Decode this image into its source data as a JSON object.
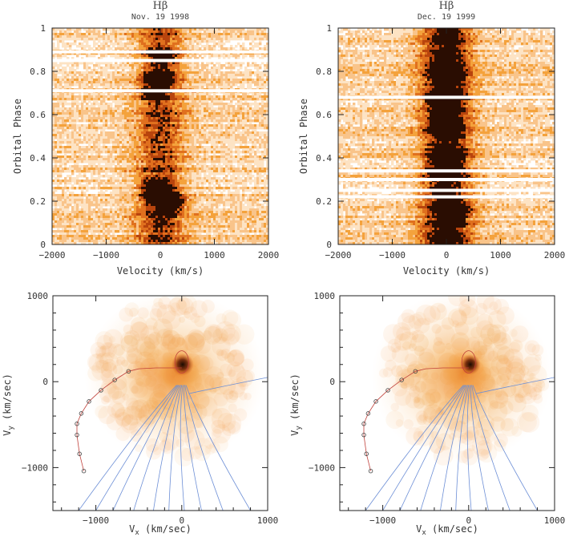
{
  "chart_data": [
    {
      "type": "heatmap",
      "title": "Hβ",
      "subtitle": "Nov. 19 1998",
      "xlabel": "Velocity (km/s)",
      "ylabel": "Orbital Phase",
      "xlim": [
        -2000,
        2000
      ],
      "ylim": [
        0,
        1
      ],
      "xticks": [
        -2000,
        -1000,
        0,
        1000,
        2000
      ],
      "yticks": [
        0,
        0.2,
        0.4,
        0.6,
        0.8,
        1
      ],
      "ytick_labels": [
        "0",
        "0.2",
        "0.4",
        "0.6",
        "0.8",
        "1"
      ],
      "emission_blobs": [
        {
          "velocity": 0,
          "phase": 0.22,
          "strength": 1.0
        },
        {
          "velocity": 180,
          "phase": 0.19,
          "strength": 0.8
        },
        {
          "velocity": -80,
          "phase": 0.27,
          "strength": 0.7
        },
        {
          "velocity": -20,
          "phase": 0.77,
          "strength": 0.9
        },
        {
          "velocity": -120,
          "phase": 0.7,
          "strength": 0.5
        },
        {
          "velocity": 40,
          "phase": 0.87,
          "strength": 0.6
        }
      ],
      "white_gap_phases": [
        0.71,
        0.85,
        0.89
      ]
    },
    {
      "type": "heatmap",
      "title": "Hβ",
      "subtitle": "Dec. 19 1999",
      "xlabel": "Velocity (km/s)",
      "ylabel": "Orbital Phase",
      "xlim": [
        -2000,
        2000
      ],
      "ylim": [
        0,
        1
      ],
      "xticks": [
        -2000,
        -1000,
        0,
        1000,
        2000
      ],
      "yticks": [
        0,
        0.2,
        0.4,
        0.6,
        0.8,
        1
      ],
      "ytick_labels": [
        "0",
        "0.2",
        "0.4",
        "0.6",
        "0.8",
        "1"
      ],
      "emission_blobs": [
        {
          "velocity": -60,
          "phase": 0.68,
          "strength": 1.0
        },
        {
          "velocity": -30,
          "phase": 0.55,
          "strength": 0.8
        },
        {
          "velocity": 20,
          "phase": 0.79,
          "strength": 0.6
        },
        {
          "velocity": 160,
          "phase": 0.15,
          "strength": 0.7
        },
        {
          "velocity": 40,
          "phase": 0.38,
          "strength": 0.5
        }
      ],
      "white_gap_phases": [
        0.22,
        0.25,
        0.3,
        0.34,
        0.68
      ]
    },
    {
      "type": "heatmap",
      "xlabel": "V_x (km/sec)",
      "ylabel": "V_y (km/sec)",
      "xlim": [
        -1500,
        1000
      ],
      "ylim": [
        -1500,
        1000
      ],
      "xticks": [
        -1000,
        0,
        1000
      ],
      "yticks": [
        -1000,
        0,
        1000
      ],
      "peak": {
        "vx": 10,
        "vy": 200
      },
      "secondary_roche_lobe": {
        "cx": 0,
        "cy": 230,
        "rx": 80,
        "ry": 130
      },
      "stream_markers": [
        [
          -620,
          120
        ],
        [
          -780,
          20
        ],
        [
          -940,
          -100
        ],
        [
          -1080,
          -230
        ],
        [
          -1170,
          -370
        ],
        [
          -1220,
          -490
        ],
        [
          -1220,
          -620
        ],
        [
          -1190,
          -840
        ],
        [
          -1140,
          -1040
        ]
      ]
    },
    {
      "type": "heatmap",
      "xlabel": "V_x (km/sec)",
      "ylabel": "V_y (km/sec)",
      "xlim": [
        -1500,
        1000
      ],
      "ylim": [
        -1500,
        1000
      ],
      "xticks": [
        -1000,
        0,
        1000
      ],
      "yticks": [
        -1000,
        0,
        1000
      ],
      "peak": {
        "vx": 20,
        "vy": 200
      },
      "secondary_roche_lobe": {
        "cx": 0,
        "cy": 230,
        "rx": 80,
        "ry": 130
      },
      "stream_markers": [
        [
          -620,
          120
        ],
        [
          -780,
          20
        ],
        [
          -940,
          -100
        ],
        [
          -1080,
          -230
        ],
        [
          -1170,
          -370
        ],
        [
          -1220,
          -490
        ],
        [
          -1220,
          -620
        ],
        [
          -1190,
          -840
        ],
        [
          -1140,
          -1040
        ]
      ]
    }
  ],
  "panels": {
    "trail_left": {
      "title": "Hβ",
      "date": "Nov. 19 1998",
      "xlabel": "Velocity (km/s)",
      "ylabel": "Orbital Phase"
    },
    "trail_right": {
      "title": "Hβ",
      "date": "Dec. 19 1999",
      "xlabel": "Velocity (km/s)",
      "ylabel": "Orbital Phase"
    },
    "tomo_left": {
      "xlabel_main": "V",
      "xlabel_sub": "x",
      "xlabel_rest": " (km/sec)",
      "ylabel_main": "V",
      "ylabel_sub": "y",
      "ylabel_rest": " (km/sec)"
    },
    "tomo_right": {
      "xlabel_main": "V",
      "xlabel_sub": "x",
      "xlabel_rest": " (km/sec)",
      "ylabel_main": "V",
      "ylabel_sub": "y",
      "ylabel_rest": " (km/sec)"
    }
  },
  "colors": {
    "cold": "#ffffff",
    "warm": "#f4a23c",
    "hot": "#d65412",
    "peak": "#1a0a00",
    "stream": "#6d8fd6",
    "lobe": "#c0403a"
  }
}
